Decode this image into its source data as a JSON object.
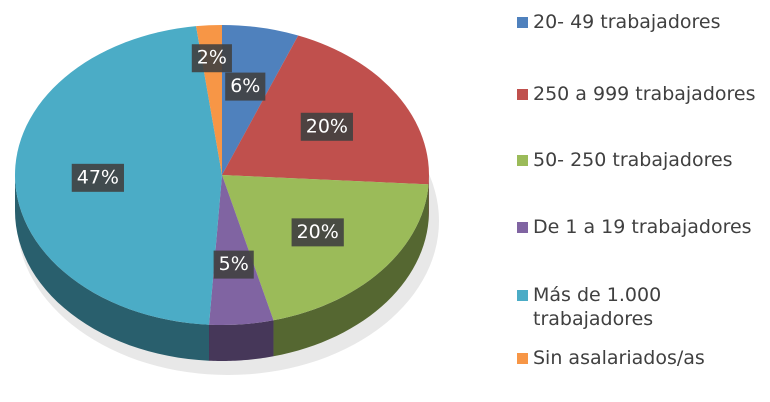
{
  "chart_data": {
    "type": "pie",
    "categories": [
      "20- 49 trabajadores",
      "250 a 999 trabajadores",
      "50- 250 trabajadores",
      "De 1 a 19 trabajadores",
      "Más de 1.000 trabajadores",
      "Sin asalariados/as"
    ],
    "values": [
      6,
      20,
      20,
      5,
      47,
      2
    ],
    "value_labels": [
      "6%",
      "20%",
      "20%",
      "5%",
      "47%",
      "2%"
    ],
    "colors": [
      "#4f81bd",
      "#c0504d",
      "#9bbb59",
      "#8064a2",
      "#4bacc6",
      "#f79646"
    ],
    "legend": "right"
  }
}
